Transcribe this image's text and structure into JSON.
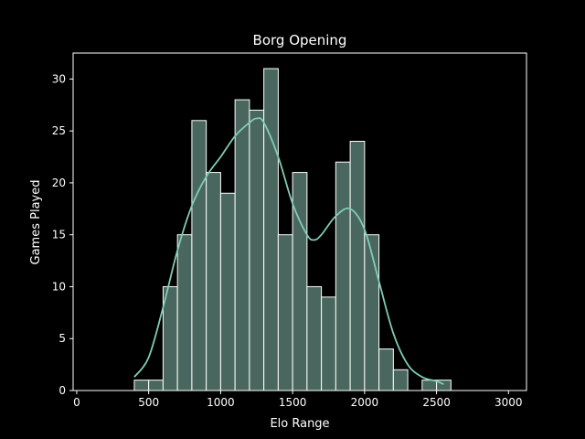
{
  "chart_data": {
    "type": "bar",
    "title": "Borg Opening",
    "xlabel": "Elo Range",
    "ylabel": "Games Played",
    "xlim": [
      -25,
      3125
    ],
    "ylim": [
      0,
      32.5
    ],
    "xticks": [
      0,
      500,
      1000,
      1500,
      2000,
      2500,
      3000
    ],
    "yticks": [
      0,
      5,
      10,
      15,
      20,
      25,
      30
    ],
    "bin_width": 100,
    "bins": [
      {
        "x0": 400,
        "count": 1
      },
      {
        "x0": 500,
        "count": 1
      },
      {
        "x0": 600,
        "count": 10
      },
      {
        "x0": 700,
        "count": 15
      },
      {
        "x0": 800,
        "count": 26
      },
      {
        "x0": 900,
        "count": 21
      },
      {
        "x0": 1000,
        "count": 19
      },
      {
        "x0": 1100,
        "count": 28
      },
      {
        "x0": 1200,
        "count": 27
      },
      {
        "x0": 1300,
        "count": 31
      },
      {
        "x0": 1400,
        "count": 15
      },
      {
        "x0": 1500,
        "count": 21
      },
      {
        "x0": 1600,
        "count": 10
      },
      {
        "x0": 1700,
        "count": 9
      },
      {
        "x0": 1800,
        "count": 22
      },
      {
        "x0": 1900,
        "count": 24
      },
      {
        "x0": 2000,
        "count": 15
      },
      {
        "x0": 2100,
        "count": 4
      },
      {
        "x0": 2200,
        "count": 2
      },
      {
        "x0": 2300,
        "count": 0
      },
      {
        "x0": 2400,
        "count": 1
      },
      {
        "x0": 2500,
        "count": 1
      }
    ],
    "kde": {
      "x": [
        400,
        500,
        600,
        700,
        800,
        900,
        1000,
        1100,
        1200,
        1250,
        1300,
        1400,
        1500,
        1600,
        1650,
        1700,
        1800,
        1900,
        2000,
        2100,
        2200,
        2300,
        2400,
        2500,
        2550
      ],
      "y": [
        1.3,
        3.2,
        8.0,
        13.5,
        17.8,
        20.6,
        22.5,
        24.5,
        25.8,
        26.2,
        25.8,
        22.5,
        18.0,
        15.0,
        14.5,
        15.0,
        16.8,
        17.5,
        15.5,
        10.5,
        5.5,
        2.5,
        1.3,
        0.9,
        0.6
      ]
    },
    "colors": {
      "bar_fill": "#49675e",
      "bar_edge": "#ffffff",
      "kde_line": "#7fcdb6",
      "background": "#000000",
      "axes": "#ffffff"
    },
    "grid": false,
    "legend": "none"
  }
}
